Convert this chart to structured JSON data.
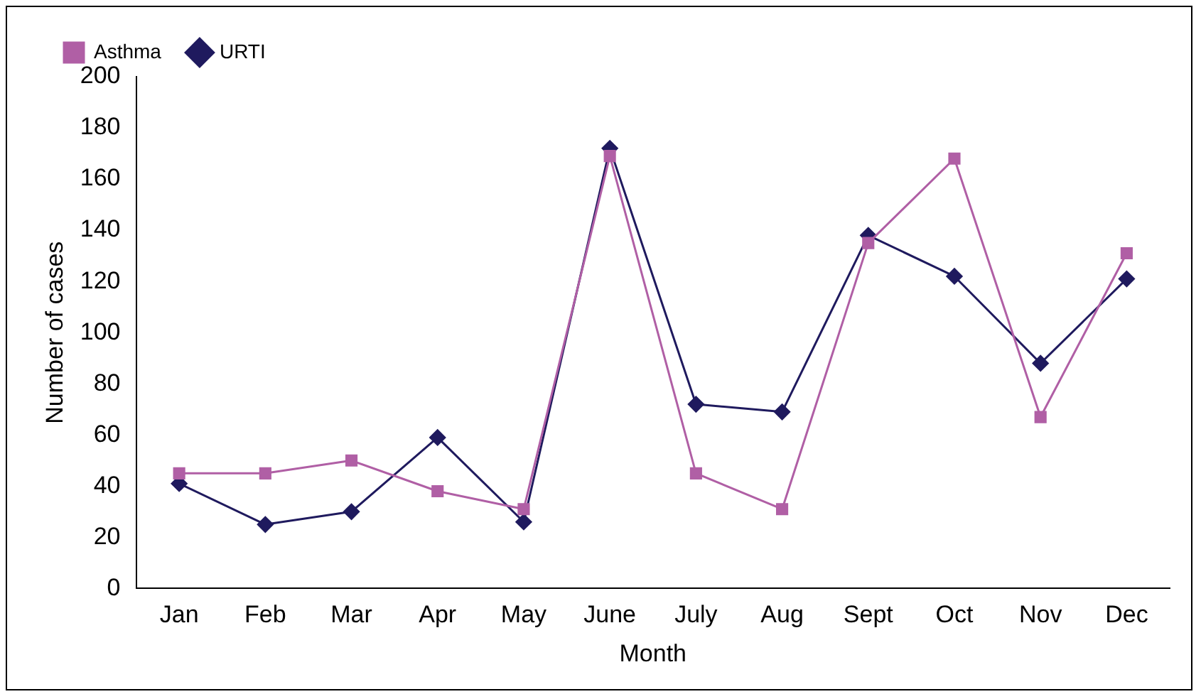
{
  "chart_data": {
    "type": "line",
    "xlabel": "Month",
    "ylabel": "Number of cases",
    "categories": [
      "Jan",
      "Feb",
      "Mar",
      "Apr",
      "May",
      "June",
      "July",
      "Aug",
      "Sept",
      "Oct",
      "Nov",
      "Dec"
    ],
    "series": [
      {
        "name": "URTI",
        "color": "#1f1a5e",
        "marker": "diamond",
        "values": [
          41,
          25,
          30,
          59,
          26,
          172,
          72,
          69,
          138,
          122,
          88,
          121
        ]
      },
      {
        "name": "Asthma",
        "color": "#b05fa5",
        "marker": "square",
        "values": [
          45,
          45,
          50,
          38,
          31,
          169,
          45,
          31,
          135,
          168,
          67,
          131
        ]
      }
    ],
    "ylim": [
      0,
      200
    ],
    "yticks": [
      0,
      20,
      40,
      60,
      80,
      100,
      120,
      140,
      160,
      180,
      200
    ],
    "grid": false,
    "legend": "top left"
  }
}
